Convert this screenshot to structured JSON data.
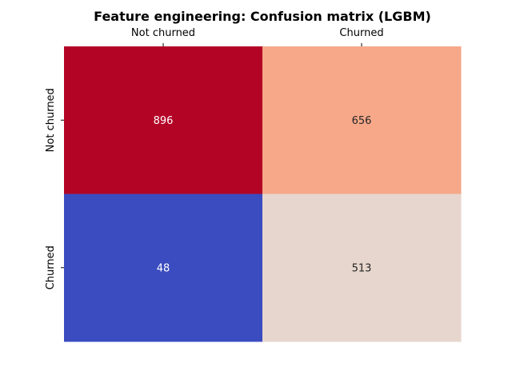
{
  "chart_data": {
    "type": "heatmap",
    "title": "Feature engineering: Confusion matrix (LGBM)",
    "xlabel": "",
    "ylabel": "",
    "x_categories": [
      "Not churned",
      "Churned"
    ],
    "y_categories": [
      "Not churned",
      "Churned"
    ],
    "x_tick_position": "top",
    "colorbar": false,
    "colormap": "coolwarm",
    "values": [
      [
        896,
        656
      ],
      [
        48,
        513
      ]
    ],
    "cell_colors": [
      [
        "#b40426",
        "#f6a889"
      ],
      [
        "#3b4cc0",
        "#e7d6cd"
      ]
    ],
    "annotation_colors": [
      [
        "#ffffff",
        "#262626"
      ],
      [
        "#ffffff",
        "#262626"
      ]
    ]
  }
}
